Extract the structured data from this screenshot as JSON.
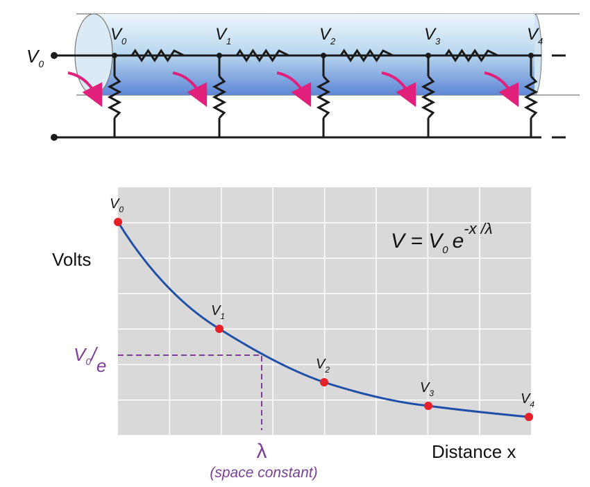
{
  "circuit": {
    "input_label": {
      "main": "V",
      "sub": "0"
    },
    "nodes": [
      {
        "main": "V",
        "sub": "0"
      },
      {
        "main": "V",
        "sub": "1"
      },
      {
        "main": "V",
        "sub": "2"
      },
      {
        "main": "V",
        "sub": "3"
      },
      {
        "main": "V",
        "sub": "4"
      }
    ]
  },
  "graph": {
    "y_label": "Volts",
    "x_label": "Distance x",
    "points": [
      {
        "main": "V",
        "sub": "0"
      },
      {
        "main": "V",
        "sub": "1"
      },
      {
        "main": "V",
        "sub": "2"
      },
      {
        "main": "V",
        "sub": "3"
      },
      {
        "main": "V",
        "sub": "4"
      }
    ],
    "equation": {
      "lhs": "V = V",
      "sub": "0",
      "base": "e",
      "exponent": "-x /λ"
    },
    "threshold": {
      "numerator": "V",
      "sub": "0",
      "denominator": "e"
    },
    "lambda": {
      "symbol": "λ",
      "caption": "(space constant)"
    }
  }
}
